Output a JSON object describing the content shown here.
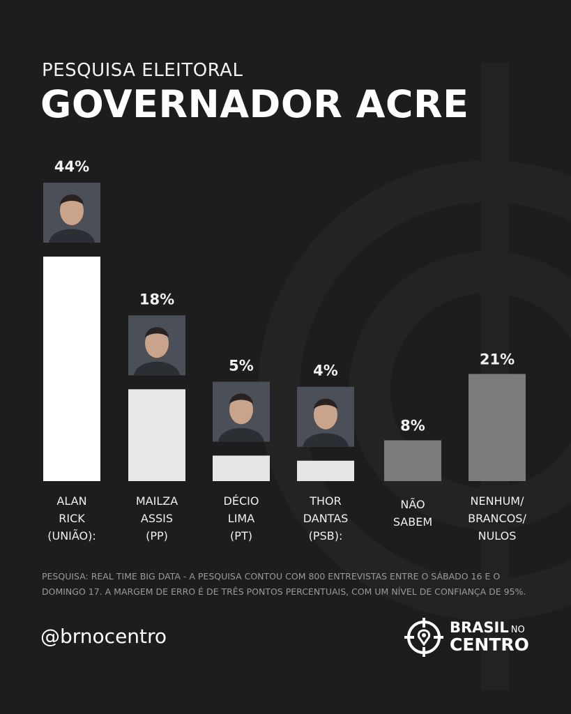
{
  "header": {
    "subtitle": "PESQUISA ELEITORAL",
    "title": "GOVERNADOR ACRE"
  },
  "chart_data": {
    "type": "bar",
    "title": "GOVERNADOR ACRE",
    "subtitle": "PESQUISA ELEITORAL",
    "categories": [
      [
        "ALAN",
        "RICK",
        "(UNIÃO):"
      ],
      [
        "MAILZA",
        "ASSIS",
        "(PP)"
      ],
      [
        "DÉCIO",
        "LIMA",
        "(PT)"
      ],
      [
        "THOR",
        "DANTAS",
        "(PSB):"
      ],
      [
        "NÃO",
        "SABEM"
      ],
      [
        "NENHUM/",
        "BRANCOS/",
        "NULOS"
      ]
    ],
    "values": [
      44,
      18,
      5,
      4,
      8,
      21
    ],
    "value_labels": [
      "44%",
      "18%",
      "5%",
      "4%",
      "8%",
      "21%"
    ],
    "has_photo": [
      true,
      true,
      true,
      true,
      false,
      false
    ],
    "bar_colors": [
      "#ffffff",
      "#e8e8e8",
      "#e6e6e6",
      "#e6e6e6",
      "#7b7b7b",
      "#7b7b7b"
    ],
    "photo_names": [
      "photo-alan-rick",
      "photo-mailza-assis",
      "photo-decio-lima",
      "photo-thor-dantas"
    ],
    "ylim": [
      0,
      44
    ],
    "grid": false,
    "legend": "none"
  },
  "footer": {
    "note": "PESQUISA: REAL TIME BIG DATA - A PESQUISA  CONTOU COM 800 ENTREVISTAS ENTRE O SÁBADO 16 E O DOMINGO 17. A MARGEM DE ERRO É DE TRÊS PONTOS PERCENTUAIS, COM UM NÍVEL DE CONFIANÇA DE 95%.",
    "handle": "@brnocentro",
    "logo": {
      "brasil": "BRASIL",
      "no": "NO",
      "centro": "CENTRO"
    }
  },
  "colors": {
    "background": "#1d1d1d",
    "text": "#ffffff",
    "note": "#9a9a9a"
  }
}
